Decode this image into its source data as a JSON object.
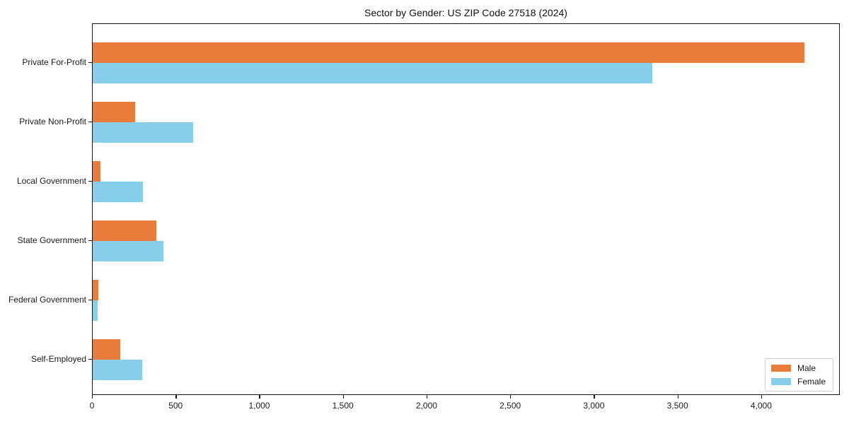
{
  "chart_data": {
    "type": "bar",
    "orientation": "horizontal",
    "title": "Sector by Gender: US ZIP Code 27518 (2024)",
    "categories": [
      "Private For-Profit",
      "Private Non-Profit",
      "Local Government",
      "State Government",
      "Federal Government",
      "Self-Employed"
    ],
    "series": [
      {
        "name": "Male",
        "color": "#e87d3b",
        "values": [
          4255,
          255,
          45,
          380,
          35,
          165
        ]
      },
      {
        "name": "Female",
        "color": "#87ceeb",
        "values": [
          3345,
          600,
          300,
          425,
          30,
          295
        ]
      }
    ],
    "xlabel": "",
    "ylabel": "",
    "xlim": [
      0,
      4470
    ],
    "x_ticks": [
      0,
      500,
      1000,
      1500,
      2000,
      2500,
      3000,
      3500,
      4000
    ],
    "x_tick_labels": [
      "0",
      "500",
      "1,000",
      "1,500",
      "2,000",
      "2,500",
      "3,000",
      "3,500",
      "4,000"
    ],
    "grid": false,
    "legend_position": "lower right",
    "frame_color": "#1a1a1a",
    "background_color": "#ffffff"
  }
}
